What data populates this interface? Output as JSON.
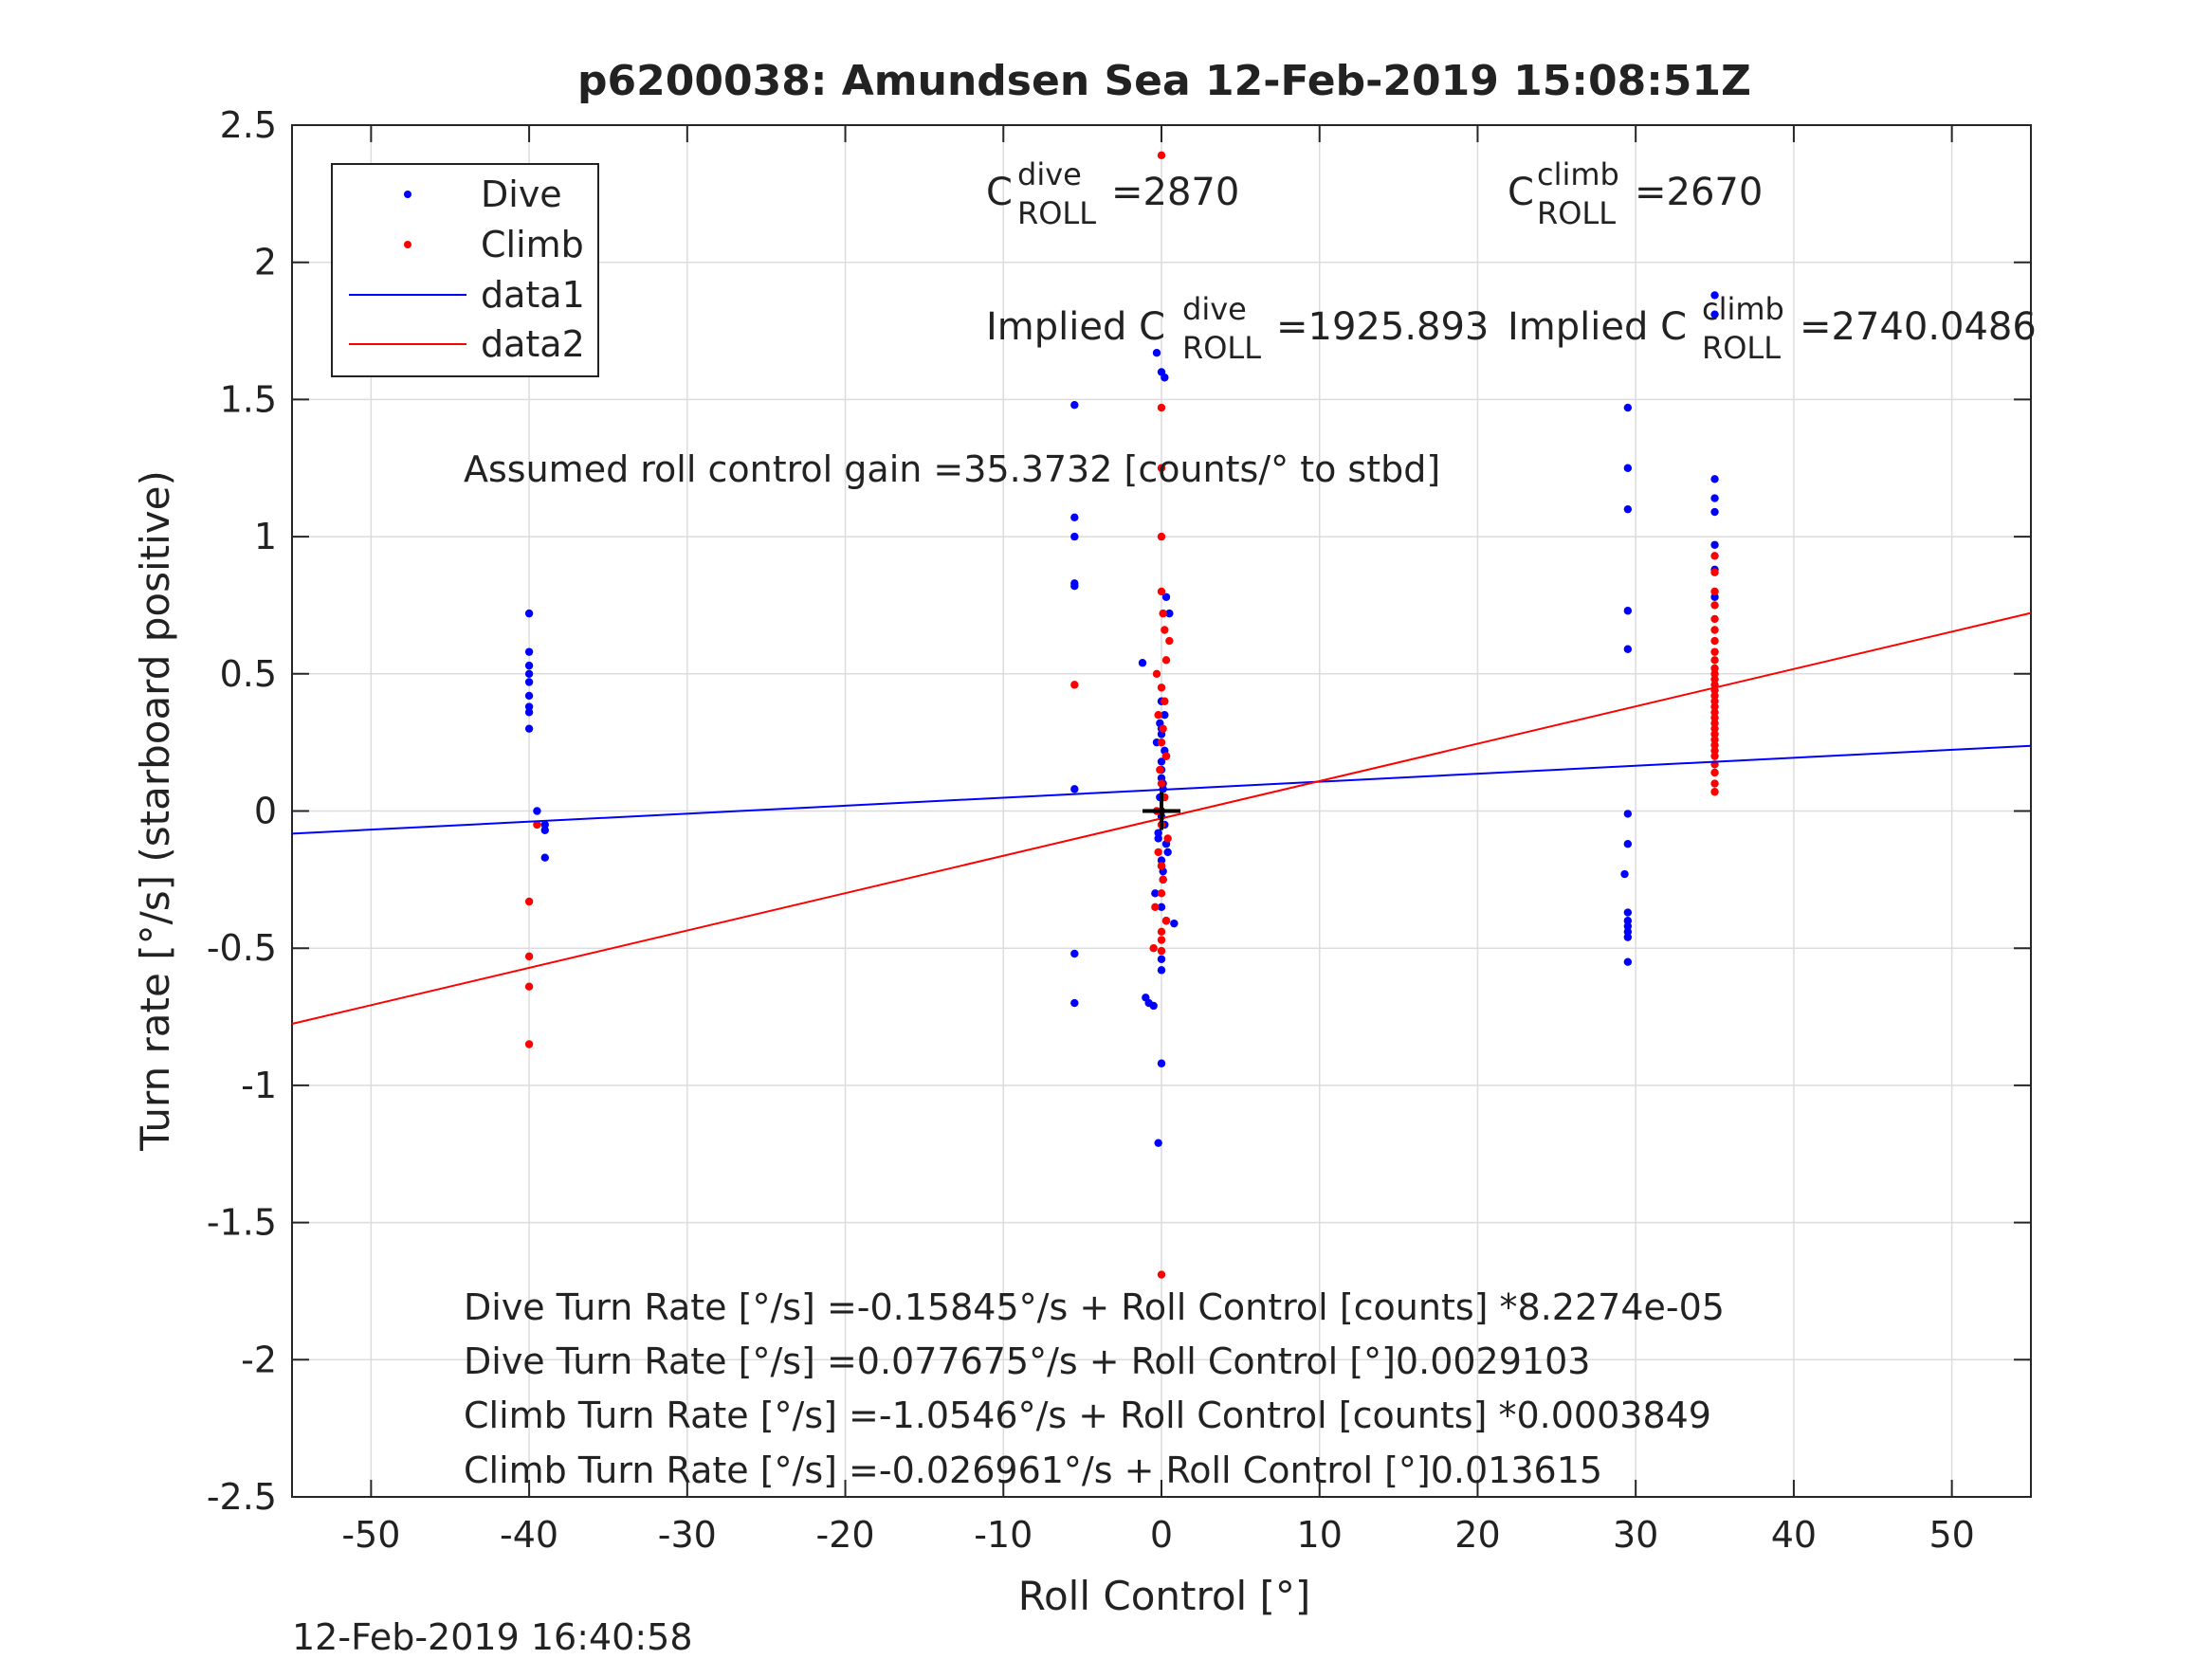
{
  "chart_data": {
    "type": "scatter",
    "title": "p6200038: Amundsen Sea 12-Feb-2019 15:08:51Z",
    "xlabel": "Roll Control [°]",
    "ylabel": "Turn rate [°/s] (starboard positive)",
    "xlim": [
      -55,
      55
    ],
    "ylim": [
      -2.5,
      2.5
    ],
    "xticks": [
      -50,
      -40,
      -30,
      -20,
      -10,
      0,
      10,
      20,
      30,
      40,
      50
    ],
    "yticks": [
      -2.5,
      -2,
      -1.5,
      -1,
      -0.5,
      0,
      0.5,
      1,
      1.5,
      2,
      2.5
    ],
    "xtick_labels": [
      "-50",
      "-40",
      "-30",
      "-20",
      "-10",
      "0",
      "10",
      "20",
      "30",
      "40",
      "50"
    ],
    "ytick_labels": [
      "-2.5",
      "-2",
      "-1.5",
      "-1",
      "-0.5",
      "0",
      "0.5",
      "1",
      "1.5",
      "2",
      "2.5"
    ],
    "grid": true,
    "legend_position": "top-left",
    "legend": [
      "Dive",
      "Climb",
      "data1",
      "data2"
    ],
    "series": [
      {
        "name": "Dive",
        "kind": "points",
        "color": "#0000ff",
        "x": [
          -40,
          -40,
          -40,
          -40,
          -40,
          -40,
          -40,
          -40,
          -40,
          -39.5,
          -39,
          -39,
          -39,
          -5.5,
          -5.5,
          -5.5,
          -5.5,
          -5.5,
          -5.5,
          -5.5,
          -5.5,
          -1.2,
          -1,
          -0.8,
          -0.5,
          -0.3,
          0,
          0.2,
          0.3,
          0.5,
          0.8,
          -0.2,
          0,
          0,
          0,
          0.2,
          0,
          -0.3,
          0.3,
          0,
          0.1,
          -0.1,
          0,
          0.2,
          -0.2,
          0.4,
          0,
          0.1,
          -0.4,
          0,
          0.3,
          0,
          -0.1,
          0,
          0.2,
          0,
          0,
          0.1,
          0,
          -0.2,
          0.3,
          0,
          0.1,
          29.5,
          29.5,
          29.5,
          29.5,
          29.5,
          29.5,
          29.5,
          29.5,
          29.3,
          29.5,
          29.5,
          29.5,
          29.5,
          29.5,
          35,
          35,
          35,
          35,
          35,
          35,
          35,
          35
        ],
        "y": [
          0.72,
          0.58,
          0.53,
          0.5,
          0.47,
          0.42,
          0.38,
          0.36,
          0.3,
          0,
          -0.05,
          -0.07,
          -0.17,
          1.48,
          1.07,
          1.0,
          0.83,
          0.82,
          0.08,
          -0.52,
          -0.7,
          0.54,
          -0.68,
          -0.7,
          -0.71,
          1.67,
          1.6,
          1.58,
          0.78,
          0.72,
          -0.41,
          -1.21,
          -0.92,
          -0.58,
          -0.54,
          0.35,
          0.3,
          0.25,
          0.2,
          0.15,
          0.1,
          0.05,
          0,
          -0.05,
          -0.1,
          -0.15,
          -0.2,
          -0.25,
          -0.3,
          -0.35,
          -0.4,
          0.4,
          0.32,
          0.28,
          0.22,
          0.18,
          0.12,
          0.08,
          -0.02,
          -0.08,
          -0.12,
          -0.18,
          -0.22,
          1.47,
          1.25,
          1.1,
          0.73,
          0.59,
          -0.12,
          -0.37,
          -0.4,
          -0.23,
          -0.42,
          -0.44,
          -0.46,
          -0.55,
          -0.01,
          1.88,
          1.81,
          1.21,
          1.14,
          1.09,
          0.97,
          0.88,
          0.78
        ]
      },
      {
        "name": "Climb",
        "kind": "points",
        "color": "#ff0000",
        "x": [
          -40,
          -40,
          -40,
          -40,
          -39.5,
          -5.5,
          0,
          0,
          0,
          0,
          0,
          0,
          0,
          -0.5,
          0.2,
          0.5,
          0.3,
          -0.3,
          0,
          0.2,
          -0.2,
          0.1,
          0,
          0.3,
          -0.1,
          0,
          0.2,
          -0.3,
          0,
          0.4,
          -0.2,
          0,
          0.1,
          0,
          -0.4,
          0.3,
          0,
          0,
          0.1,
          35,
          35,
          35,
          35,
          35,
          35,
          35,
          35,
          35,
          35,
          35,
          35,
          35,
          35,
          35,
          35,
          35,
          35,
          35,
          35,
          35,
          35,
          35,
          35,
          35,
          35,
          35,
          35,
          35,
          35
        ],
        "y": [
          -0.33,
          -0.53,
          -0.64,
          -0.85,
          -0.05,
          0.46,
          2.39,
          1.47,
          1.25,
          1.0,
          -1.69,
          -0.44,
          -0.51,
          -0.5,
          0.66,
          0.62,
          0.55,
          0.5,
          0.45,
          0.4,
          0.35,
          0.3,
          0.25,
          0.2,
          0.15,
          0.1,
          0.05,
          0,
          -0.05,
          -0.1,
          -0.15,
          -0.2,
          -0.25,
          -0.3,
          -0.35,
          -0.4,
          -0.47,
          0.8,
          0.72,
          0.93,
          0.87,
          0.8,
          0.75,
          0.7,
          0.66,
          0.62,
          0.58,
          0.55,
          0.52,
          0.5,
          0.48,
          0.46,
          0.44,
          0.42,
          0.4,
          0.38,
          0.36,
          0.34,
          0.32,
          0.3,
          0.28,
          0.26,
          0.24,
          0.22,
          0.2,
          0.17,
          0.14,
          0.1,
          0.07
        ]
      },
      {
        "name": "data1",
        "kind": "line",
        "color": "#0000ff",
        "x": [
          -55,
          55
        ],
        "y": [
          -0.0824,
          0.2377
        ]
      },
      {
        "name": "data2",
        "kind": "line",
        "color": "#ff0000",
        "x": [
          -55,
          55
        ],
        "y": [
          -0.7758,
          0.7218
        ]
      }
    ],
    "center_marker": {
      "x": 0,
      "y": 0,
      "symbol": "+",
      "color": "#000000"
    },
    "annotations": [
      {
        "text": "Assumed roll control gain =35.3732 [counts/° to stbd]"
      },
      {
        "text": "Dive Turn Rate [°/s] =-0.15845°/s + Roll Control [counts] *8.2274e-05"
      },
      {
        "text": "Dive Turn Rate [°/s] =0.077675°/s + Roll Control [°]0.0029103"
      },
      {
        "text": "Climb Turn Rate [°/s] =-1.0546°/s + Roll Control [counts] *0.0003849"
      },
      {
        "text": "Climb Turn Rate [°/s] =-0.026961°/s + Roll Control [°]0.013615"
      }
    ],
    "c_roll": {
      "dive_label_base": "C",
      "dive_sup": "dive",
      "dive_sub": "ROLL",
      "dive_value": "=2870",
      "climb_label_base": "C",
      "climb_sup": "climb",
      "climb_sub": "ROLL",
      "climb_value": "=2670",
      "implied_prefix": "Implied C",
      "implied_dive_value": "=1925.893",
      "implied_climb_value": "=2740.0486"
    }
  },
  "footer": {
    "timestamp": "12-Feb-2019 16:40:58"
  }
}
